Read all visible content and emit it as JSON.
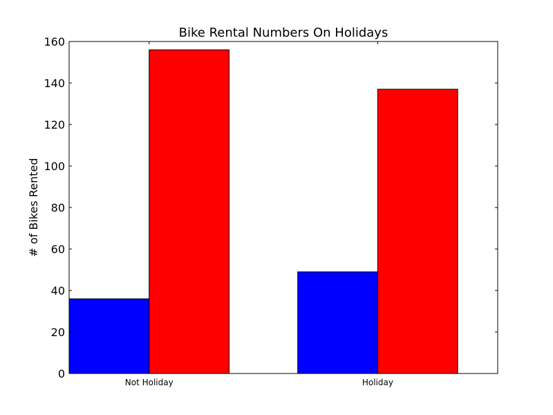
{
  "chart_data": {
    "type": "bar",
    "title": "Bike Rental Numbers On Holidays",
    "xlabel": "",
    "ylabel": "# of Bikes Rented",
    "categories": [
      "Not Holiday",
      "Holiday"
    ],
    "series": [
      {
        "color": "#0000ff",
        "values": [
          36,
          49
        ]
      },
      {
        "color": "#ff0000",
        "values": [
          156,
          137
        ]
      }
    ],
    "ylim": [
      0,
      160
    ],
    "yticks": [
      0,
      20,
      40,
      60,
      80,
      100,
      120,
      140,
      160
    ],
    "grid": false,
    "legend": "none"
  }
}
